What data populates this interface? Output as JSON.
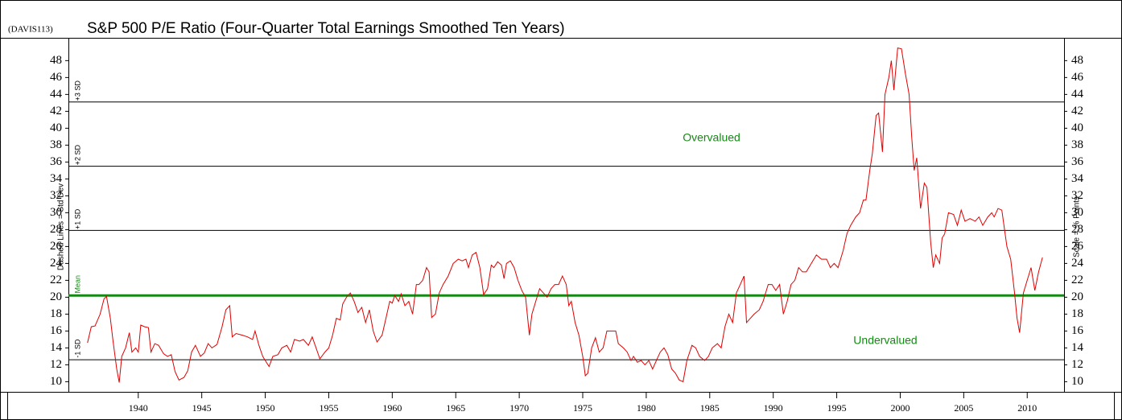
{
  "chart_data": {
    "type": "line",
    "code": "(DAVIS113)",
    "title": "S&P 500 P/E Ratio (Four-Quarter Total Earnings Smoothed Ten Years)",
    "y_label_left": "Dashed Lines = Std Dev",
    "y_label_right": "Scale = % Points",
    "annotations": [
      "Overvalued",
      "Undervalued"
    ],
    "reference_lines": [
      {
        "label": "+3 SD",
        "value": 43.1,
        "color": "#000000"
      },
      {
        "label": "+2 SD",
        "value": 35.5,
        "color": "#000000"
      },
      {
        "label": "+1 SD",
        "value": 27.9,
        "color": "#000000"
      },
      {
        "label": "Mean",
        "value": 20.2,
        "color": "#138a13"
      },
      {
        "label": "-1 SD",
        "value": 12.6,
        "color": "#000000"
      }
    ],
    "xlim": [
      1934.5,
      2012.9
    ],
    "xticks": [
      1940,
      1945,
      1950,
      1955,
      1960,
      1965,
      1970,
      1975,
      1980,
      1985,
      1990,
      1995,
      2000,
      2005,
      2010
    ],
    "ylim": [
      8.8,
      50.7
    ],
    "yticks": [
      10,
      12,
      14,
      16,
      18,
      20,
      22,
      24,
      26,
      28,
      30,
      32,
      34,
      36,
      38,
      40,
      42,
      44,
      46,
      48
    ],
    "x": [
      1936.0,
      1936.3,
      1936.6,
      1937.0,
      1937.3,
      1937.5,
      1937.8,
      1938.0,
      1938.3,
      1938.5,
      1938.7,
      1939.0,
      1939.3,
      1939.5,
      1939.8,
      1940.0,
      1940.2,
      1940.5,
      1940.8,
      1941.0,
      1941.3,
      1941.6,
      1942.0,
      1942.3,
      1942.6,
      1942.9,
      1943.2,
      1943.6,
      1943.9,
      1944.2,
      1944.5,
      1944.9,
      1945.2,
      1945.5,
      1945.8,
      1946.2,
      1946.6,
      1946.9,
      1947.2,
      1947.4,
      1947.7,
      1948.2,
      1948.6,
      1949.0,
      1949.2,
      1949.5,
      1949.8,
      1950.0,
      1950.3,
      1950.6,
      1951.0,
      1951.3,
      1951.7,
      1952.0,
      1952.3,
      1952.7,
      1953.0,
      1953.4,
      1953.7,
      1954.0,
      1954.3,
      1954.7,
      1955.0,
      1955.3,
      1955.6,
      1955.9,
      1956.1,
      1956.4,
      1956.7,
      1957.0,
      1957.3,
      1957.6,
      1957.9,
      1958.2,
      1958.5,
      1958.8,
      1959.2,
      1959.5,
      1959.8,
      1960.0,
      1960.2,
      1960.5,
      1960.7,
      1961.0,
      1961.3,
      1961.6,
      1961.9,
      1962.1,
      1962.4,
      1962.7,
      1962.9,
      1963.1,
      1963.4,
      1963.7,
      1964.0,
      1964.4,
      1964.8,
      1965.2,
      1965.5,
      1965.8,
      1966.0,
      1966.3,
      1966.6,
      1966.9,
      1967.2,
      1967.5,
      1967.8,
      1968.0,
      1968.3,
      1968.6,
      1968.8,
      1969.0,
      1969.3,
      1969.6,
      1969.9,
      1970.2,
      1970.5,
      1970.8,
      1971.0,
      1971.3,
      1971.6,
      1971.9,
      1972.2,
      1972.5,
      1972.8,
      1973.1,
      1973.4,
      1973.7,
      1973.9,
      1974.1,
      1974.4,
      1974.7,
      1975.0,
      1975.2,
      1975.4,
      1975.7,
      1976.0,
      1976.3,
      1976.6,
      1976.9,
      1977.3,
      1977.6,
      1977.8,
      1978.2,
      1978.5,
      1978.8,
      1979.0,
      1979.3,
      1979.6,
      1979.9,
      1980.2,
      1980.5,
      1980.8,
      1981.1,
      1981.4,
      1981.7,
      1982.0,
      1982.3,
      1982.6,
      1982.9,
      1983.2,
      1983.6,
      1983.9,
      1984.2,
      1984.6,
      1984.9,
      1985.2,
      1985.6,
      1985.9,
      1986.2,
      1986.5,
      1986.8,
      1987.1,
      1987.4,
      1987.7,
      1987.9,
      1988.2,
      1988.5,
      1988.9,
      1989.2,
      1989.6,
      1989.9,
      1990.2,
      1990.5,
      1990.8,
      1991.1,
      1991.4,
      1991.7,
      1992.0,
      1992.3,
      1992.6,
      1993.0,
      1993.4,
      1993.8,
      1994.2,
      1994.5,
      1994.8,
      1995.1,
      1995.5,
      1995.8,
      1996.1,
      1996.5,
      1996.8,
      1997.1,
      1997.3,
      1997.6,
      1997.8,
      1998.1,
      1998.3,
      1998.6,
      1998.8,
      1999.1,
      1999.3,
      1999.5,
      1999.8,
      2000.1,
      2000.4,
      2000.7,
      2000.9,
      2001.1,
      2001.3,
      2001.6,
      2001.9,
      2002.1,
      2002.4,
      2002.6,
      2002.8,
      2003.1,
      2003.3,
      2003.5,
      2003.8,
      2004.2,
      2004.5,
      2004.8,
      2005.1,
      2005.5,
      2005.9,
      2006.2,
      2006.5,
      2006.9,
      2007.2,
      2007.4,
      2007.7,
      2008.0,
      2008.4,
      2008.7,
      2009.0,
      2009.2,
      2009.4,
      2009.7,
      2010.0,
      2010.3,
      2010.6,
      2010.9,
      2011.2
    ],
    "series": [
      {
        "name": "S&P 500 P/E Ratio",
        "color": "#e00000",
        "values": [
          14.6,
          16.5,
          16.6,
          18.0,
          19.8,
          20.1,
          17.5,
          15.0,
          11.5,
          9.9,
          13.0,
          14.0,
          15.8,
          13.5,
          14.0,
          13.5,
          16.7,
          16.5,
          16.4,
          13.5,
          14.5,
          14.3,
          13.3,
          13.0,
          13.2,
          11.2,
          10.2,
          10.5,
          11.3,
          13.5,
          14.3,
          13.0,
          13.4,
          14.5,
          14.0,
          14.4,
          16.5,
          18.5,
          19.0,
          15.3,
          15.7,
          15.5,
          15.3,
          15.0,
          16.0,
          14.3,
          13.0,
          12.5,
          11.8,
          13.0,
          13.2,
          14.0,
          14.3,
          13.5,
          15.0,
          14.8,
          15.0,
          14.3,
          15.3,
          14.0,
          12.7,
          13.5,
          14.0,
          15.5,
          17.5,
          17.3,
          19.2,
          20.0,
          20.5,
          19.5,
          18.2,
          18.8,
          17.0,
          18.5,
          16.0,
          14.7,
          15.5,
          17.5,
          19.5,
          19.3,
          20.2,
          19.5,
          20.4,
          19.0,
          19.5,
          18.0,
          21.5,
          21.5,
          22.0,
          23.5,
          23.0,
          17.6,
          18.0,
          20.5,
          21.5,
          22.5,
          24.0,
          24.5,
          24.3,
          24.5,
          23.5,
          25.0,
          25.3,
          23.5,
          20.3,
          21.0,
          23.8,
          23.5,
          24.2,
          23.8,
          22.2,
          24.0,
          24.3,
          23.5,
          22.0,
          20.8,
          20.0,
          15.5,
          18.0,
          19.5,
          21.0,
          20.5,
          20.0,
          21.0,
          21.5,
          21.5,
          22.5,
          21.5,
          19.0,
          19.5,
          17.0,
          15.5,
          13.0,
          10.7,
          11.0,
          14.0,
          15.2,
          13.5,
          14.0,
          16.0,
          16.0,
          16.0,
          14.5,
          14.0,
          13.5,
          12.5,
          13.0,
          12.3,
          12.5,
          12.0,
          12.5,
          11.5,
          12.5,
          13.5,
          14.0,
          13.2,
          11.5,
          11.0,
          10.2,
          10.0,
          12.5,
          14.3,
          14.0,
          13.0,
          12.5,
          13.0,
          14.0,
          14.5,
          14.0,
          16.5,
          18.0,
          17.0,
          20.5,
          21.5,
          22.5,
          17.0,
          17.5,
          18.0,
          18.5,
          19.5,
          21.5,
          21.5,
          20.8,
          21.5,
          18.0,
          19.5,
          21.5,
          22.0,
          23.5,
          23.0,
          23.0,
          24.0,
          25.0,
          24.5,
          24.5,
          23.5,
          24.0,
          23.5,
          25.5,
          27.5,
          28.5,
          29.5,
          30.0,
          31.5,
          31.5,
          35.0,
          37.0,
          41.5,
          41.8,
          37.2,
          44.0,
          46.0,
          48.0,
          44.5,
          49.5,
          49.4,
          46.5,
          44.0,
          39.0,
          35.0,
          36.5,
          30.5,
          33.5,
          33.0,
          26.5,
          23.5,
          25.0,
          24.0,
          27.0,
          27.5,
          30.0,
          29.8,
          28.5,
          30.3,
          29.0,
          29.3,
          29.0,
          29.5,
          28.5,
          29.5,
          30.0,
          29.5,
          30.5,
          30.3,
          26.0,
          24.5,
          20.5,
          17.5,
          15.8,
          20.5,
          22.0,
          23.5,
          20.8,
          23.0,
          24.7
        ]
      }
    ]
  }
}
